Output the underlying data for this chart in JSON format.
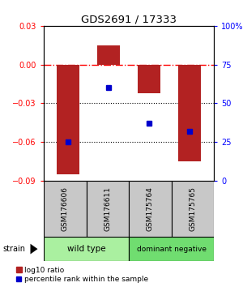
{
  "title": "GDS2691 / 17333",
  "samples": [
    "GSM176606",
    "GSM176611",
    "GSM175764",
    "GSM175765"
  ],
  "log10_ratio": [
    -0.085,
    0.015,
    -0.022,
    -0.075
  ],
  "percentile_rank": [
    25,
    60,
    37,
    32
  ],
  "bar_color": "#b22222",
  "dot_color": "#0000cc",
  "ylim_left": [
    -0.09,
    0.03
  ],
  "ylim_right": [
    0,
    100
  ],
  "yticks_left": [
    -0.09,
    -0.06,
    -0.03,
    0,
    0.03
  ],
  "yticks_right": [
    0,
    25,
    50,
    75,
    100
  ],
  "dotted_lines": [
    -0.03,
    -0.06
  ],
  "groups": [
    {
      "label": "wild type",
      "samples": [
        0,
        1
      ],
      "color": "#aaf0a0"
    },
    {
      "label": "dominant negative",
      "samples": [
        2,
        3
      ],
      "color": "#70dd70"
    }
  ],
  "strain_label": "strain",
  "legend_bar_label": "log10 ratio",
  "legend_dot_label": "percentile rank within the sample",
  "bar_width": 0.55,
  "background_color": "#ffffff",
  "sample_box_color": "#c8c8c8"
}
